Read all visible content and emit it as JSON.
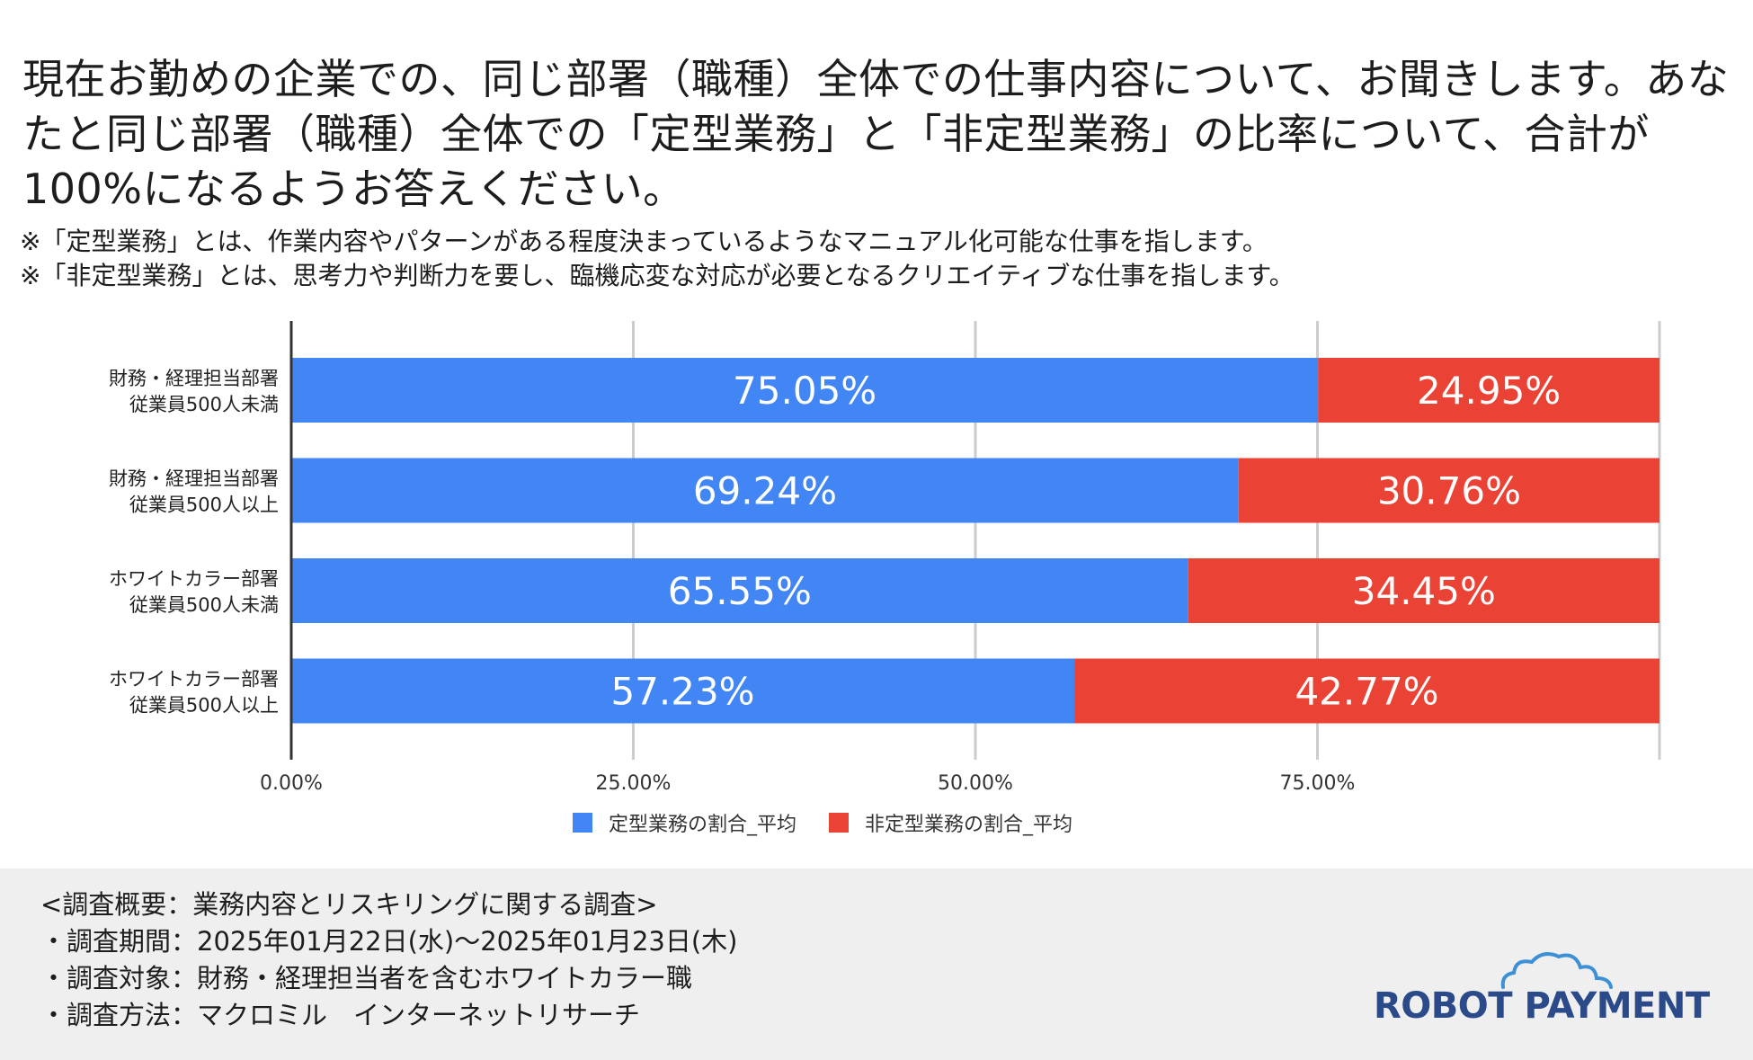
{
  "title": "現在お勤めの企業での、同じ部署（職種）全体での仕事内容について、お聞きします。あなたと同じ部署（職種）全体での「定型業務」と「非定型業務」の比率について、合計が100%になるようお答えください。",
  "notes": [
    "※「定型業務」とは、作業内容やパターンがある程度決まっているようなマニュアル化可能な仕事を指します。",
    "※「非定型業務」とは、思考力や判断力を要し、臨機応変な対応が必要となるクリエイティブな仕事を指します。"
  ],
  "chart_data": {
    "type": "bar",
    "orientation": "horizontal",
    "stacked": true,
    "categories": [
      [
        "財務・経理担当部署",
        "従業員500人未満"
      ],
      [
        "財務・経理担当部署",
        "従業員500人以上"
      ],
      [
        "ホワイトカラー部署",
        "従業員500人未満"
      ],
      [
        "ホワイトカラー部署",
        "従業員500人以上"
      ]
    ],
    "series": [
      {
        "name": "定型業務の割合_平均",
        "color": "#4285f4",
        "values": [
          75.05,
          69.24,
          65.55,
          57.23
        ],
        "labels": [
          "75.05%",
          "69.24%",
          "65.55%",
          "57.23%"
        ]
      },
      {
        "name": "非定型業務の割合_平均",
        "color": "#ea4335",
        "values": [
          24.95,
          30.76,
          34.45,
          42.77
        ],
        "labels": [
          "24.95%",
          "30.76%",
          "34.45%",
          "42.77%"
        ]
      }
    ],
    "xlim": [
      0,
      100
    ],
    "xticks": [
      0,
      25,
      50,
      75,
      100
    ],
    "xtick_labels": [
      "0.00%",
      "25.00%",
      "50.00%",
      "75.00%",
      ""
    ],
    "grid": true,
    "legend": "bottom"
  },
  "footer": {
    "lines": [
      "<調査概要：業務内容とリスキリングに関する調査>",
      "・調査期間：2025年01月22日(水)〜2025年01月23日(木)",
      "・調査対象：財務・経理担当者を含むホワイトカラー職",
      "・調査方法：マクロミル　インターネットリサーチ"
    ]
  },
  "logo": {
    "text": "ROBOT PAYMENT",
    "color": "#2b4a8a",
    "cloud_color": "#3d8fd6"
  }
}
